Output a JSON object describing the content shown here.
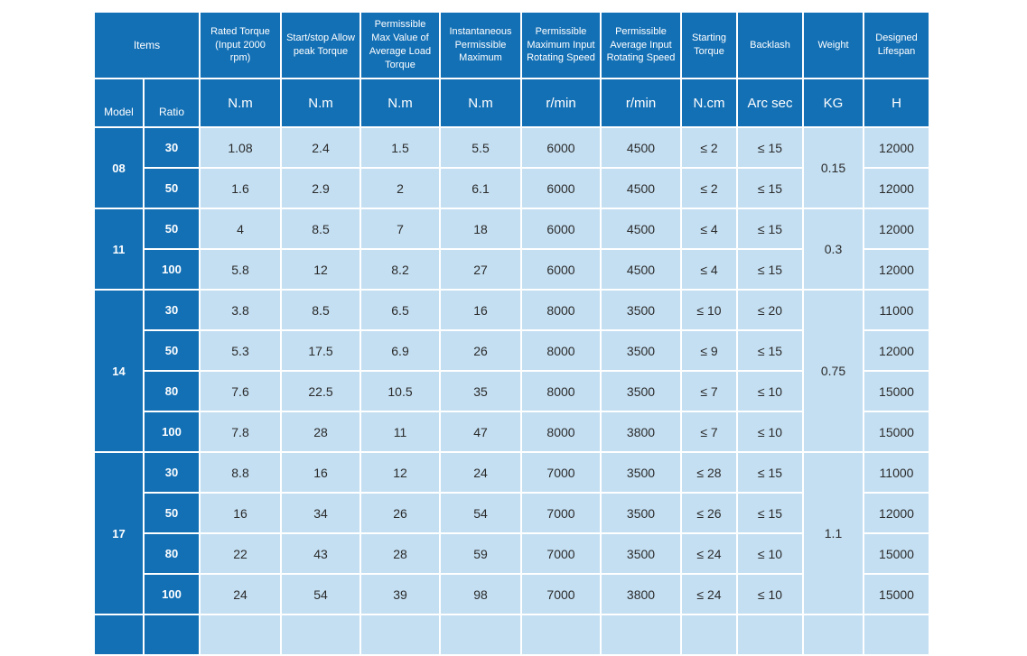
{
  "table": {
    "header": {
      "items_label": "Items",
      "model_label": "Model",
      "ratio_label": "Ratio",
      "columns": [
        {
          "label": "Rated Torque (Input 2000 rpm)",
          "unit": "N.m"
        },
        {
          "label": "Start/stop Allow peak Torque",
          "unit": "N.m"
        },
        {
          "label": "Permissible Max Value of Average Load Torque",
          "unit": "N.m"
        },
        {
          "label": "Instantaneous Permissible Maximum",
          "unit": "N.m"
        },
        {
          "label": "Permissible Maximum Input Rotating Speed",
          "unit": "r/min"
        },
        {
          "label": "Permissible Average Input Rotating Speed",
          "unit": "r/min"
        },
        {
          "label": "Starting Torque",
          "unit": "N.cm"
        },
        {
          "label": "Backlash",
          "unit": "Arc sec"
        },
        {
          "label": "Weight",
          "unit": "KG"
        },
        {
          "label": "Designed Lifespan",
          "unit": "H"
        }
      ]
    },
    "groups": [
      {
        "model": "08",
        "weight": "0.15",
        "rows": [
          {
            "ratio": "30",
            "values": [
              "1.08",
              "2.4",
              "1.5",
              "5.5",
              "6000",
              "4500",
              "≤ 2",
              "≤ 15"
            ],
            "lifespan": "12000"
          },
          {
            "ratio": "50",
            "values": [
              "1.6",
              "2.9",
              "2",
              "6.1",
              "6000",
              "4500",
              "≤ 2",
              "≤ 15"
            ],
            "lifespan": "12000"
          }
        ]
      },
      {
        "model": "11",
        "weight": "0.3",
        "rows": [
          {
            "ratio": "50",
            "values": [
              "4",
              "8.5",
              "7",
              "18",
              "6000",
              "4500",
              "≤ 4",
              "≤ 15"
            ],
            "lifespan": "12000"
          },
          {
            "ratio": "100",
            "values": [
              "5.8",
              "12",
              "8.2",
              "27",
              "6000",
              "4500",
              "≤ 4",
              "≤ 15"
            ],
            "lifespan": "12000"
          }
        ]
      },
      {
        "model": "14",
        "weight": "0.75",
        "rows": [
          {
            "ratio": "30",
            "values": [
              "3.8",
              "8.5",
              "6.5",
              "16",
              "8000",
              "3500",
              "≤ 10",
              "≤ 20"
            ],
            "lifespan": "11000"
          },
          {
            "ratio": "50",
            "values": [
              "5.3",
              "17.5",
              "6.9",
              "26",
              "8000",
              "3500",
              "≤ 9",
              "≤ 15"
            ],
            "lifespan": "12000"
          },
          {
            "ratio": "80",
            "values": [
              "7.6",
              "22.5",
              "10.5",
              "35",
              "8000",
              "3500",
              "≤ 7",
              "≤ 10"
            ],
            "lifespan": "15000"
          },
          {
            "ratio": "100",
            "values": [
              "7.8",
              "28",
              "11",
              "47",
              "8000",
              "3800",
              "≤ 7",
              "≤ 10"
            ],
            "lifespan": "15000"
          }
        ]
      },
      {
        "model": "17",
        "weight": "1.1",
        "rows": [
          {
            "ratio": "30",
            "values": [
              "8.8",
              "16",
              "12",
              "24",
              "7000",
              "3500",
              "≤ 28",
              "≤ 15"
            ],
            "lifespan": "11000"
          },
          {
            "ratio": "50",
            "values": [
              "16",
              "34",
              "26",
              "54",
              "7000",
              "3500",
              "≤ 26",
              "≤ 15"
            ],
            "lifespan": "12000"
          },
          {
            "ratio": "80",
            "values": [
              "22",
              "43",
              "28",
              "59",
              "7000",
              "3500",
              "≤ 24",
              "≤ 10"
            ],
            "lifespan": "15000"
          },
          {
            "ratio": "100",
            "values": [
              "24",
              "54",
              "39",
              "98",
              "7000",
              "3800",
              "≤ 24",
              "≤ 10"
            ],
            "lifespan": "15000"
          }
        ]
      },
      {
        "model": "",
        "weight": "",
        "rows": [
          {
            "ratio": "",
            "values": [
              "",
              "",
              "",
              "",
              "",
              "",
              "",
              ""
            ],
            "lifespan": ""
          }
        ]
      }
    ],
    "colors": {
      "header_bg": "#1470b5",
      "cell_bg": "#c4dff2",
      "grid": "#ffffff",
      "header_text": "#ffffff",
      "cell_text": "#2b2b2b"
    }
  }
}
